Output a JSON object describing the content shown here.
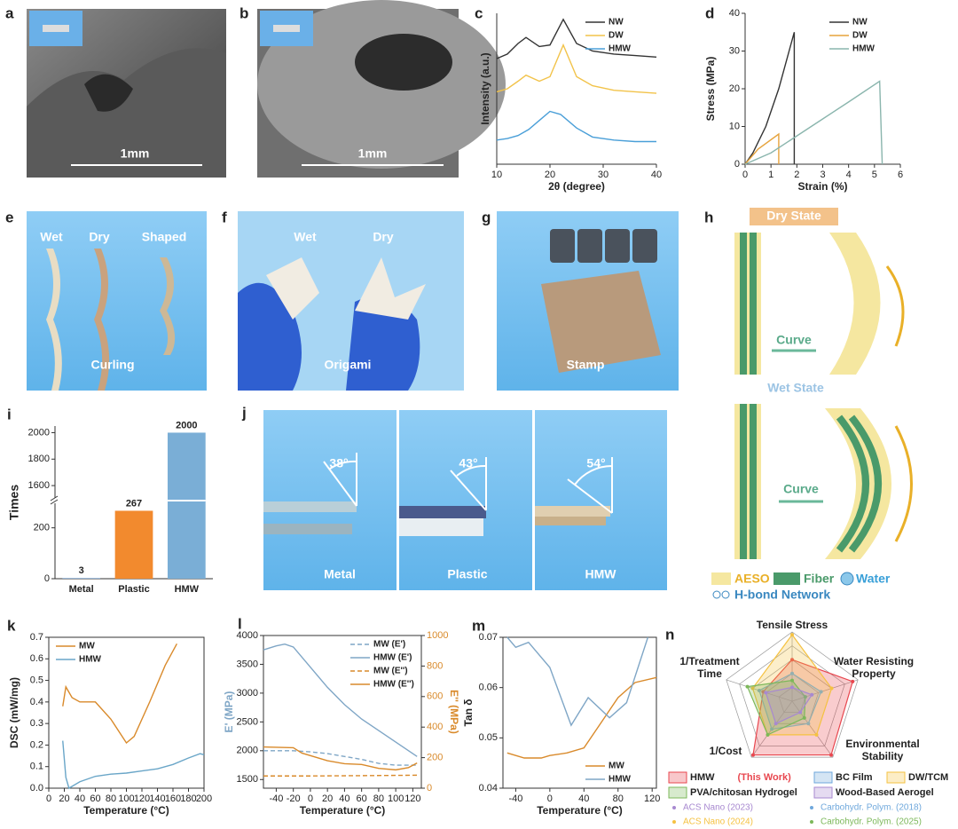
{
  "photos": {
    "a": {
      "label": "a",
      "scale_bar": "1mm"
    },
    "b": {
      "label": "b",
      "scale_bar": "1mm"
    },
    "e": {
      "label": "e",
      "texts": [
        "Wet",
        "Dry",
        "Shaped",
        "Curling"
      ]
    },
    "f": {
      "label": "f",
      "texts": [
        "Wet",
        "Dry",
        "Origami"
      ]
    },
    "g": {
      "label": "g",
      "texts": [
        "Stamp"
      ]
    },
    "j": {
      "label": "j",
      "texts": [
        "38°",
        "43°",
        "54°",
        "Metal",
        "Plastic",
        "HMW"
      ]
    }
  },
  "diagram": {
    "label": "h",
    "texts": [
      "Dry State",
      "Curve",
      "Wet State",
      "Curve",
      "AESO",
      "Fiber",
      "Water",
      "H-bond Network"
    ]
  },
  "chart_data": [
    {
      "label": "c",
      "type": "line",
      "xlabel": "2θ (degree)",
      "ylabel": "Intensity (a.u.)",
      "xlim": [
        10,
        40
      ],
      "xticks": [
        10,
        20,
        30,
        40
      ],
      "ylim": [
        0,
        10
      ],
      "frame": false,
      "legend": "upper right",
      "series": [
        {
          "name": "NW",
          "color": "#333333",
          "x": [
            10,
            12,
            14,
            15.5,
            18,
            20,
            22.5,
            25,
            28,
            32,
            36,
            40
          ],
          "values": [
            7.0,
            7.3,
            8.0,
            8.4,
            7.8,
            7.9,
            9.6,
            8.0,
            7.5,
            7.3,
            7.2,
            7.1
          ]
        },
        {
          "name": "DW",
          "color": "#f2c34a",
          "x": [
            10,
            12,
            14,
            15.5,
            18,
            20,
            22.5,
            25,
            28,
            32,
            36,
            40
          ],
          "values": [
            4.8,
            5.0,
            5.5,
            5.9,
            5.5,
            5.8,
            7.9,
            5.8,
            5.2,
            4.9,
            4.8,
            4.7
          ]
        },
        {
          "name": "HMW",
          "color": "#4a9fd8",
          "x": [
            10,
            12,
            14,
            16,
            18,
            20,
            22,
            25,
            28,
            32,
            36,
            40
          ],
          "values": [
            1.6,
            1.7,
            1.9,
            2.3,
            2.9,
            3.5,
            3.3,
            2.4,
            1.8,
            1.6,
            1.5,
            1.5
          ]
        }
      ]
    },
    {
      "label": "d",
      "type": "line",
      "xlabel": "Strain (%)",
      "ylabel": "Stress (MPa)",
      "xlim": [
        0,
        6
      ],
      "xticks": [
        0,
        1,
        2,
        3,
        4,
        5,
        6
      ],
      "ylim": [
        0,
        40
      ],
      "yticks": [
        0,
        10,
        20,
        30,
        40
      ],
      "frame": false,
      "legend": "upper right",
      "series": [
        {
          "name": "NW",
          "color": "#333333",
          "x": [
            0,
            0.3,
            0.8,
            1.3,
            1.9,
            1.9
          ],
          "values": [
            0,
            3,
            10,
            20,
            35,
            0
          ]
        },
        {
          "name": "DW",
          "color": "#e6a33c",
          "x": [
            0,
            0.5,
            1.3,
            1.3
          ],
          "values": [
            0,
            4,
            8,
            0
          ]
        },
        {
          "name": "HMW",
          "color": "#8ab5ad",
          "x": [
            0,
            1,
            2,
            3,
            4,
            5.2,
            5.3
          ],
          "values": [
            0,
            3,
            7.5,
            12,
            16.5,
            22,
            0
          ]
        }
      ]
    },
    {
      "label": "i",
      "type": "bar",
      "ylabel": "Times",
      "categories": [
        "Metal",
        "Plastic",
        "HMW"
      ],
      "values": [
        3,
        267,
        2000
      ],
      "colors": [
        "#8fb0d6",
        "#f28a2e",
        "#7aaed6"
      ],
      "ylim": [
        0,
        2050
      ],
      "ybreak": [
        300,
        1500
      ],
      "yticks": [
        0,
        200,
        1600,
        1800,
        2000
      ]
    },
    {
      "label": "k",
      "type": "line",
      "xlabel": "Temperature (°C)",
      "ylabel": "DSC (mW/mg)",
      "xlim": [
        0,
        200
      ],
      "xticks": [
        0,
        20,
        40,
        60,
        80,
        100,
        120,
        140,
        160,
        180,
        200
      ],
      "ylim": [
        0,
        0.7
      ],
      "yticks": [
        {
          "value": 0,
          "label": "0.0"
        },
        0.1,
        0.2,
        0.3,
        0.4,
        0.5,
        0.6,
        0.7
      ],
      "frame": true,
      "legend": "upper left",
      "series": [
        {
          "name": "MW",
          "color": "#d98a2b",
          "x": [
            18,
            22,
            30,
            40,
            60,
            80,
            100,
            110,
            130,
            150,
            165
          ],
          "values": [
            0.38,
            0.47,
            0.42,
            0.4,
            0.4,
            0.32,
            0.21,
            0.24,
            0.4,
            0.57,
            0.67
          ]
        },
        {
          "name": "HMW",
          "color": "#6aa6c8",
          "x": [
            18,
            22,
            26,
            40,
            60,
            80,
            100,
            120,
            140,
            160,
            180,
            195,
            200
          ],
          "values": [
            0.22,
            0.05,
            0.0,
            0.03,
            0.055,
            0.065,
            0.07,
            0.08,
            0.09,
            0.11,
            0.14,
            0.16,
            0.155
          ]
        }
      ]
    },
    {
      "label": "l",
      "type": "line",
      "xlabel": "Temperature (°C)",
      "ylabel": "E' (MPa)",
      "y2label": "E'' (MPa)",
      "xlim": [
        -55,
        130
      ],
      "xticks": [
        -40,
        -20,
        0,
        20,
        40,
        60,
        80,
        100,
        120
      ],
      "ylim": [
        1350,
        4000
      ],
      "yticks": [
        1500,
        2000,
        2500,
        3000,
        3500,
        4000
      ],
      "y2lim": [
        0,
        1000
      ],
      "y2ticks": [
        0,
        200,
        400,
        600,
        800,
        1000
      ],
      "frame": true,
      "legend": "upper right",
      "series": [
        {
          "name": "MW (E')",
          "color": "#7fa6c6",
          "dash": true,
          "x": [
            -55,
            -20,
            0,
            20,
            40,
            60,
            80,
            100,
            125
          ],
          "values": [
            2000,
            2000,
            1980,
            1950,
            1900,
            1850,
            1780,
            1750,
            1750
          ]
        },
        {
          "name": "HMW (E')",
          "color": "#7fa6c6",
          "x": [
            -55,
            -40,
            -30,
            -20,
            0,
            20,
            40,
            60,
            80,
            100,
            125
          ],
          "values": [
            3750,
            3820,
            3850,
            3800,
            3450,
            3100,
            2800,
            2550,
            2350,
            2150,
            1900
          ]
        },
        {
          "name": "MW (E'')",
          "color": "#d98a2b",
          "dash": true,
          "axis": "y2",
          "x": [
            -55,
            0,
            60,
            125
          ],
          "values": [
            80,
            80,
            82,
            85
          ]
        },
        {
          "name": "HMW (E'')",
          "color": "#d98a2b",
          "axis": "y2",
          "x": [
            -55,
            -20,
            -10,
            20,
            40,
            60,
            80,
            100,
            115,
            125
          ],
          "values": [
            270,
            265,
            230,
            180,
            160,
            155,
            130,
            120,
            135,
            165
          ]
        }
      ]
    },
    {
      "label": "m",
      "type": "line",
      "xlabel": "Temperature (°C)",
      "ylabel": "Tan δ",
      "xlim": [
        -55,
        125
      ],
      "xticks": [
        -40,
        0,
        40,
        80,
        120
      ],
      "ylim": [
        0.04,
        0.07
      ],
      "yticks": [
        0.04,
        0.05,
        0.06,
        0.07
      ],
      "frame": true,
      "legend": "lower right",
      "series": [
        {
          "name": "MW",
          "color": "#d98a2b",
          "x": [
            -50,
            -30,
            -10,
            0,
            20,
            40,
            60,
            80,
            100,
            125
          ],
          "values": [
            0.047,
            0.046,
            0.046,
            0.0465,
            0.047,
            0.048,
            0.053,
            0.058,
            0.061,
            0.062
          ]
        },
        {
          "name": "HMW",
          "color": "#7fa6c6",
          "x": [
            -50,
            -40,
            -25,
            0,
            25,
            45,
            70,
            90,
            115
          ],
          "values": [
            0.07,
            0.068,
            0.069,
            0.064,
            0.0525,
            0.058,
            0.054,
            0.057,
            0.07
          ]
        }
      ]
    },
    {
      "label": "n",
      "type": "radar",
      "axes": [
        "Tensile Stress",
        "Water Resisting Property",
        "Environmental Stability",
        "1/Cost",
        "1/Treatment Time"
      ],
      "rlim": [
        0,
        5
      ],
      "series": [
        {
          "name": "HMW",
          "note": "(This Work)",
          "color": "#e8474f",
          "values": [
            3,
            4.6,
            4.8,
            4.8,
            2.2
          ]
        },
        {
          "name": "BC Film",
          "source": "Carbohydr. Polym. (2018)",
          "color": "#6fa8dc",
          "values": [
            2,
            2.2,
            2,
            2.5,
            2.5
          ]
        },
        {
          "name": "DW/TCM",
          "source": "ACS Nano (2024)",
          "color": "#f5c242",
          "values": [
            4.8,
            3,
            3,
            3,
            3
          ]
        },
        {
          "name": "PVA/chitosan Hydrogel",
          "source": "Carbohydr. Polym. (2025)",
          "color": "#7cb85a",
          "values": [
            1.5,
            1,
            1.5,
            3,
            3.4
          ]
        },
        {
          "name": "Wood-Based Aerogel",
          "source": "ACS Nano (2023)",
          "color": "#a889d0",
          "values": [
            1,
            1.5,
            1,
            2,
            2
          ]
        }
      ]
    }
  ]
}
